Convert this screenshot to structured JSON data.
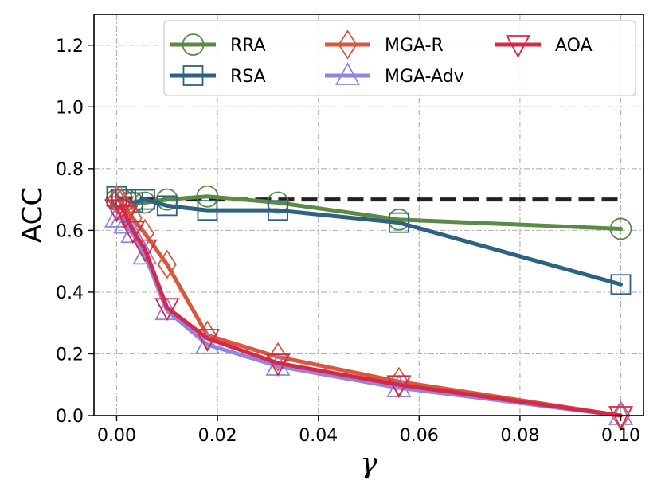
{
  "chart_data": {
    "type": "line",
    "xlabel": "γ",
    "ylabel": "ACC",
    "xlim": [
      -0.0045,
      0.1045
    ],
    "ylim": [
      0.0,
      1.3
    ],
    "xticks": [
      0.0,
      0.02,
      0.04,
      0.06,
      0.08,
      0.1
    ],
    "xtick_labels": [
      "0.00",
      "0.02",
      "0.04",
      "0.06",
      "0.08",
      "0.10"
    ],
    "yticks": [
      0.0,
      0.2,
      0.4,
      0.6,
      0.8,
      1.0,
      1.2
    ],
    "ytick_labels": [
      "0.0",
      "0.2",
      "0.4",
      "0.6",
      "0.8",
      "1.0",
      "1.2"
    ],
    "grid": true,
    "legend_position": "top-right",
    "reference_line": {
      "y": 0.7,
      "x_range": [
        0.0,
        0.1
      ],
      "style": "dashed",
      "color": "#222222"
    },
    "series": [
      {
        "name": "RRA",
        "color": "#5b8a45",
        "marker": "circle",
        "x": [
          0.0,
          0.001,
          0.0018,
          0.0032,
          0.0056,
          0.01,
          0.018,
          0.032,
          0.056,
          0.1
        ],
        "y": [
          0.7,
          0.7,
          0.7,
          0.69,
          0.69,
          0.7,
          0.71,
          0.69,
          0.635,
          0.605
        ]
      },
      {
        "name": "RSA",
        "color": "#2d6283",
        "marker": "square",
        "x": [
          0.0,
          0.001,
          0.0018,
          0.0032,
          0.0056,
          0.01,
          0.018,
          0.032,
          0.056,
          0.1
        ],
        "y": [
          0.71,
          0.7,
          0.7,
          0.69,
          0.7,
          0.68,
          0.665,
          0.665,
          0.625,
          0.425
        ]
      },
      {
        "name": "MGA-R",
        "color": "#d9573d",
        "marker": "diamond",
        "x": [
          0.0,
          0.001,
          0.0018,
          0.0032,
          0.0056,
          0.01,
          0.018,
          0.032,
          0.056,
          0.1
        ],
        "y": [
          0.7,
          0.69,
          0.67,
          0.64,
          0.59,
          0.49,
          0.26,
          0.19,
          0.11,
          0.0
        ]
      },
      {
        "name": "MGA-Adv",
        "color": "#9284e0",
        "marker": "triangle-up",
        "x": [
          0.0,
          0.001,
          0.0018,
          0.0032,
          0.0056,
          0.01,
          0.018,
          0.032,
          0.056,
          0.1
        ],
        "y": [
          0.64,
          0.64,
          0.62,
          0.59,
          0.52,
          0.34,
          0.23,
          0.16,
          0.09,
          0.0
        ]
      },
      {
        "name": "AOA",
        "color": "#d62847",
        "marker": "triangle-down",
        "x": [
          0.0,
          0.001,
          0.0018,
          0.0032,
          0.0056,
          0.01,
          0.018,
          0.032,
          0.056,
          0.1
        ],
        "y": [
          0.67,
          0.68,
          0.65,
          0.6,
          0.54,
          0.35,
          0.25,
          0.17,
          0.1,
          0.0
        ]
      }
    ]
  }
}
